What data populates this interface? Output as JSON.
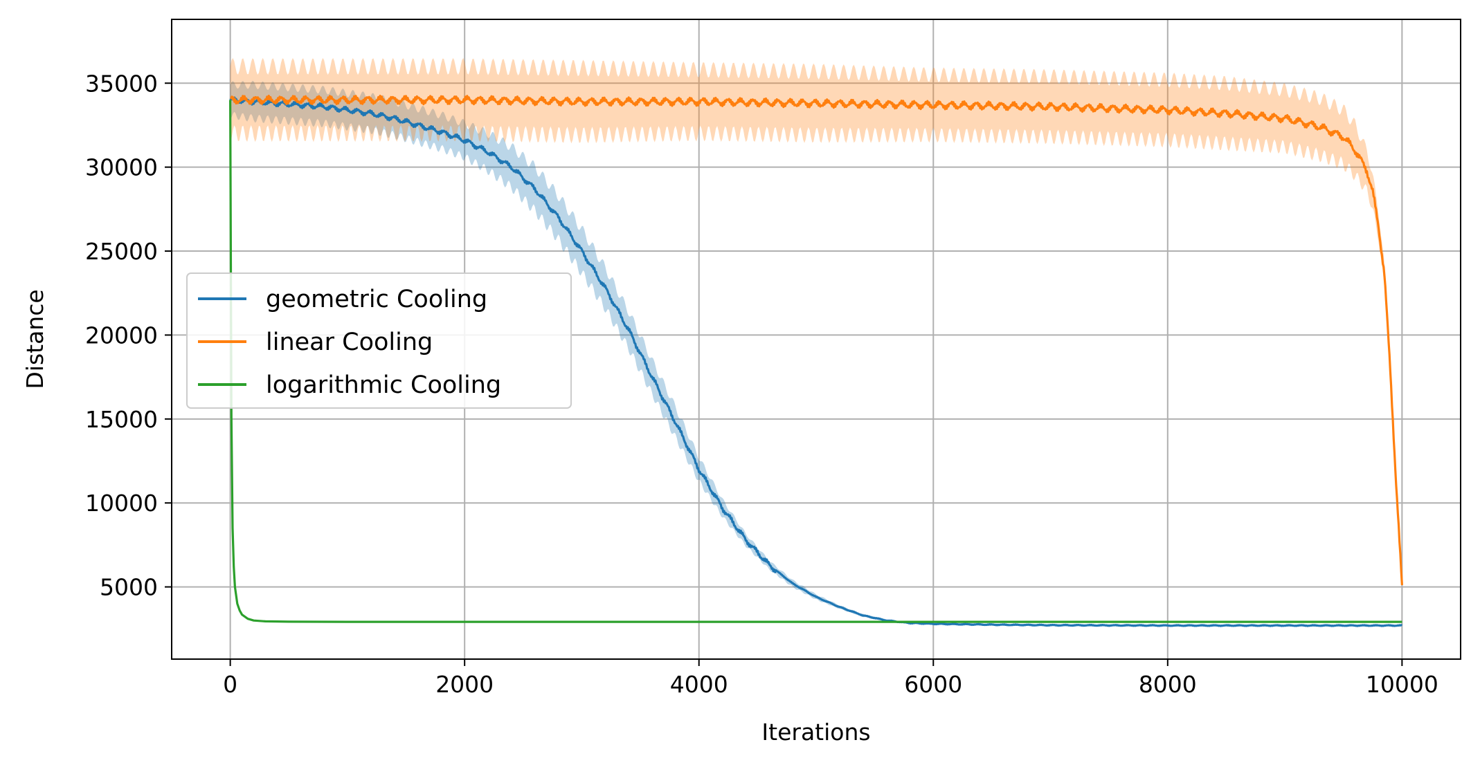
{
  "chart_data": {
    "type": "line",
    "xlabel": "Iterations",
    "ylabel": "Distance",
    "xlim": [
      -500,
      10500
    ],
    "ylim": [
      700,
      38800
    ],
    "xticks": [
      0,
      2000,
      4000,
      6000,
      8000,
      10000
    ],
    "yticks": [
      5000,
      10000,
      15000,
      20000,
      25000,
      30000,
      35000
    ],
    "grid": true,
    "legend_position": "center-left",
    "series": [
      {
        "name": "geometric Cooling",
        "color": "#1f77b4",
        "x": [
          0,
          200,
          400,
          600,
          800,
          1000,
          1200,
          1400,
          1600,
          1800,
          2000,
          2200,
          2400,
          2600,
          2800,
          3000,
          3200,
          3400,
          3600,
          3800,
          4000,
          4200,
          4400,
          4600,
          4800,
          5000,
          5200,
          5400,
          5600,
          5800,
          6000,
          6500,
          7000,
          8000,
          9000,
          10000
        ],
        "y": [
          34000,
          33900,
          33800,
          33700,
          33600,
          33400,
          33200,
          32900,
          32500,
          32100,
          31600,
          30900,
          30000,
          28700,
          27000,
          25000,
          22800,
          20300,
          17500,
          14800,
          12000,
          9700,
          7800,
          6300,
          5200,
          4400,
          3800,
          3300,
          3000,
          2850,
          2800,
          2750,
          2720,
          2700,
          2700,
          2700
        ],
        "band": [
          900,
          1000,
          1000,
          1000,
          1000,
          1000,
          1000,
          1000,
          1000,
          1000,
          1000,
          1100,
          1200,
          1300,
          1300,
          1300,
          1200,
          1100,
          1000,
          900,
          700,
          500,
          350,
          250,
          200,
          150,
          100,
          80,
          60,
          50,
          40,
          30,
          20,
          20,
          20,
          20
        ]
      },
      {
        "name": "linear Cooling",
        "color": "#ff7f0e",
        "x": [
          0,
          500,
          1000,
          2000,
          3000,
          4000,
          5000,
          6000,
          7000,
          8000,
          8500,
          9000,
          9300,
          9500,
          9600,
          9700,
          9750,
          9800,
          9850,
          9900,
          9950,
          10000
        ],
        "y": [
          34000,
          34000,
          34000,
          34000,
          33900,
          33900,
          33800,
          33700,
          33600,
          33400,
          33200,
          32900,
          32400,
          31800,
          31000,
          29800,
          28500,
          26500,
          23500,
          18000,
          11000,
          5100
        ],
        "band": [
          2000,
          2000,
          2000,
          2000,
          2000,
          1900,
          1900,
          1800,
          1800,
          1800,
          1800,
          1700,
          1700,
          1600,
          1500,
          1200,
          1000,
          800,
          700,
          500,
          300,
          100
        ]
      },
      {
        "name": "logarithmic Cooling",
        "color": "#2ca02c",
        "x": [
          0,
          5,
          10,
          20,
          30,
          40,
          60,
          80,
          100,
          150,
          200,
          300,
          500,
          1000,
          2000,
          4000,
          6000,
          8000,
          10000
        ],
        "y": [
          34000,
          24000,
          15000,
          8500,
          6200,
          5000,
          4000,
          3600,
          3350,
          3100,
          3000,
          2950,
          2930,
          2920,
          2920,
          2920,
          2920,
          2920,
          2920
        ],
        "band": [
          0,
          0,
          0,
          0,
          0,
          0,
          0,
          0,
          0,
          0,
          0,
          0,
          0,
          0,
          0,
          0,
          0,
          0,
          0
        ]
      }
    ]
  }
}
